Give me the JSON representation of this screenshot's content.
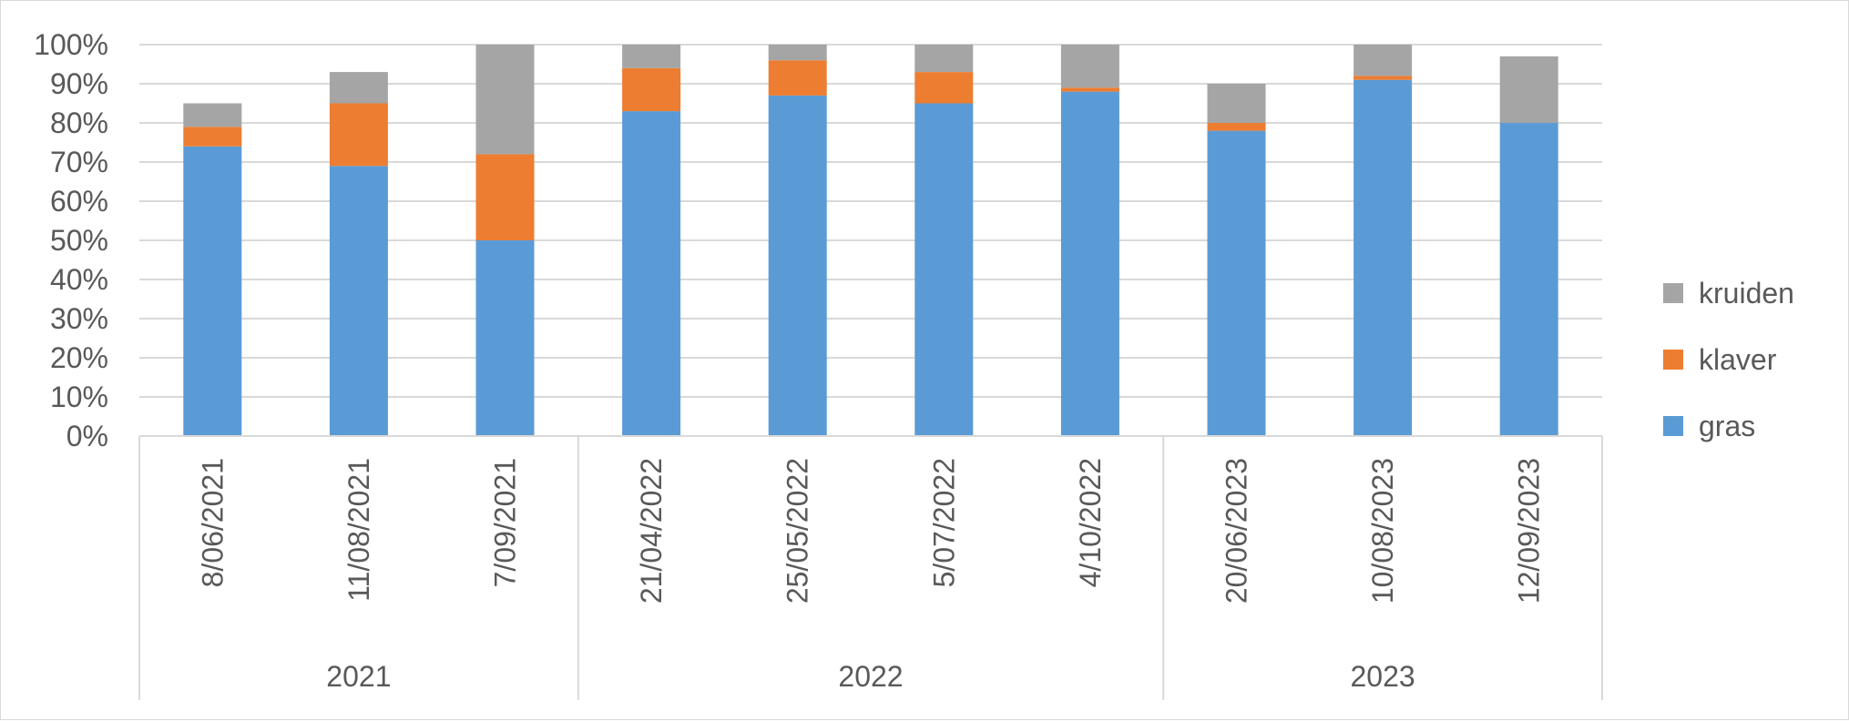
{
  "chart_data": {
    "type": "bar",
    "stacked": true,
    "title": "",
    "xlabel": "",
    "ylabel": "",
    "ylim": [
      0,
      100
    ],
    "y_ticks": [
      "0%",
      "10%",
      "20%",
      "30%",
      "40%",
      "50%",
      "60%",
      "70%",
      "80%",
      "90%",
      "100%"
    ],
    "grid": true,
    "legend_position": "right",
    "categories": [
      "8/06/2021",
      "11/08/2021",
      "7/09/2021",
      "21/04/2022",
      "25/05/2022",
      "5/07/2022",
      "4/10/2022",
      "20/06/2023",
      "10/08/2023",
      "12/09/2023"
    ],
    "groups": [
      {
        "label": "2021",
        "count": 3
      },
      {
        "label": "2022",
        "count": 4
      },
      {
        "label": "2023",
        "count": 3
      }
    ],
    "series": [
      {
        "name": "gras",
        "color": "#5b9bd5",
        "values": [
          74,
          69,
          50,
          83,
          87,
          85,
          88,
          78,
          91,
          80
        ]
      },
      {
        "name": "klaver",
        "color": "#ed7d31",
        "values": [
          5,
          16,
          22,
          11,
          9,
          8,
          1,
          2,
          1,
          0
        ]
      },
      {
        "name": "kruiden",
        "color": "#a5a5a5",
        "values": [
          6,
          8,
          28,
          6,
          4,
          7,
          11,
          10,
          8,
          17
        ]
      }
    ]
  }
}
